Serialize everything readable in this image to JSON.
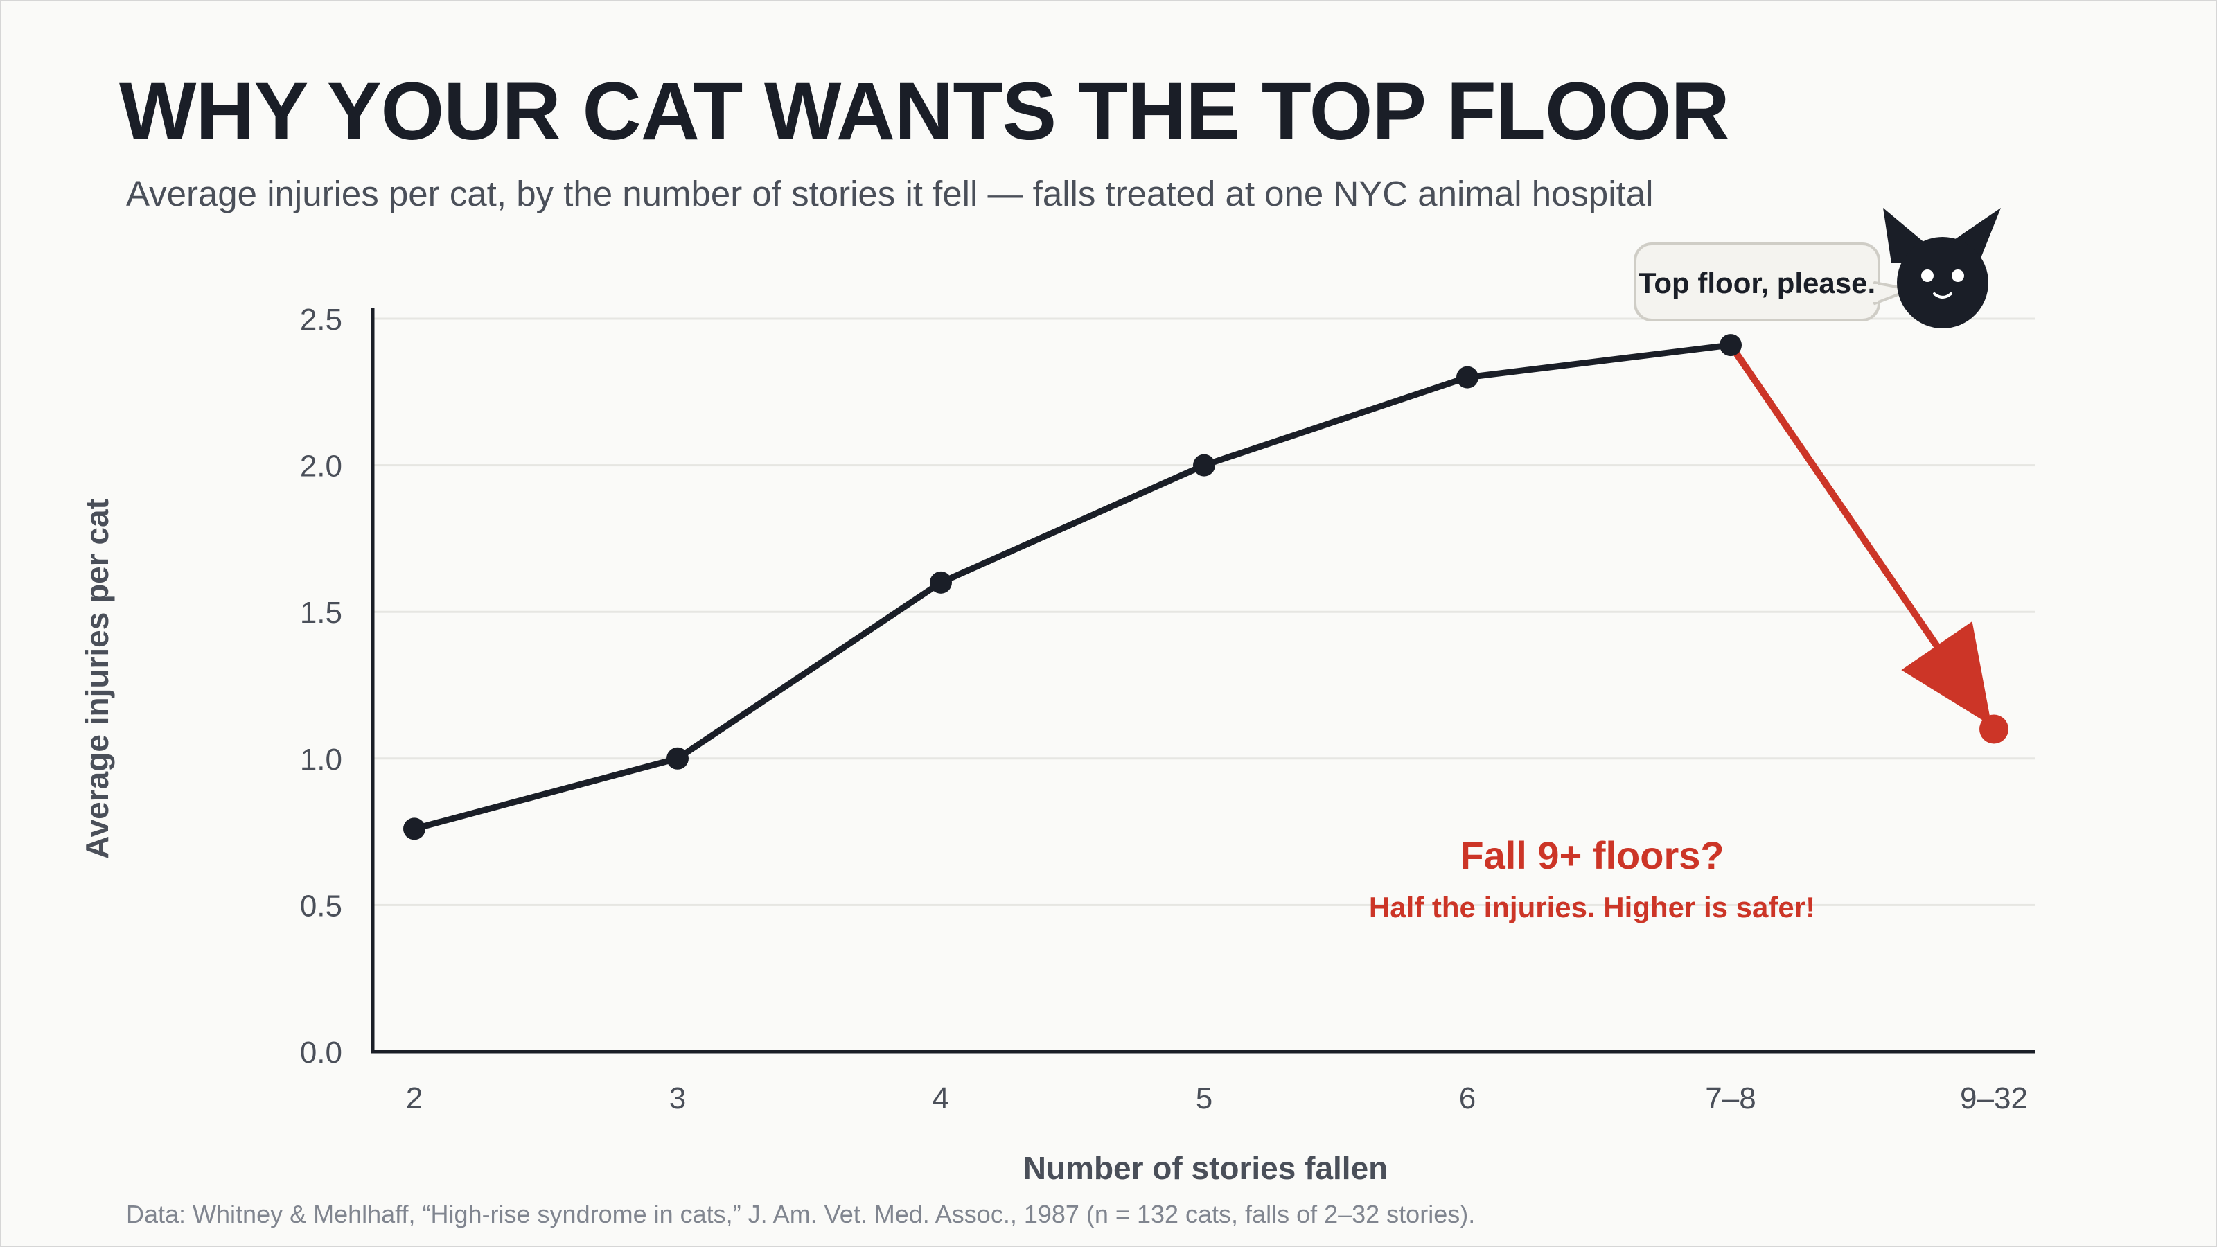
{
  "header": {
    "title": "WHY YOUR CAT WANTS THE TOP FLOOR",
    "subtitle": "Average injuries per cat, by the number of stories it fell — falls treated at one NYC animal hospital"
  },
  "footer": {
    "source": "Data: Whitney & Mehlhaff, “High-rise syndrome in cats,” J. Am. Vet. Med. Assoc., 1987 (n = 132 cats, falls of 2–32 stories)."
  },
  "annotation": {
    "headline": "Fall 9+ floors?",
    "detail": "Half the injuries. Higher is safer!",
    "speech_bubble": "Top floor, please."
  },
  "icons": {
    "mascot": "cat-face-icon"
  },
  "colors": {
    "line": "#1a1e27",
    "highlight": "#cc3527",
    "grid": "#e6e6e2",
    "text": "#4a4f59"
  },
  "chart_data": {
    "type": "line",
    "title": "WHY YOUR CAT WANTS THE TOP FLOOR",
    "xlabel": "Number of stories fallen",
    "ylabel": "Average injuries per cat",
    "categories": [
      "2",
      "3",
      "4",
      "5",
      "6",
      "7–8",
      "9–32"
    ],
    "values": [
      0.76,
      1.0,
      1.6,
      2.0,
      2.3,
      2.41,
      1.1
    ],
    "highlight_category": "9–32",
    "ylim": [
      0,
      2.5
    ],
    "yticks": [
      "0.0",
      "0.5",
      "1.0",
      "1.5",
      "2.0",
      "2.5"
    ],
    "grid": "horizontal",
    "legend": "none"
  }
}
